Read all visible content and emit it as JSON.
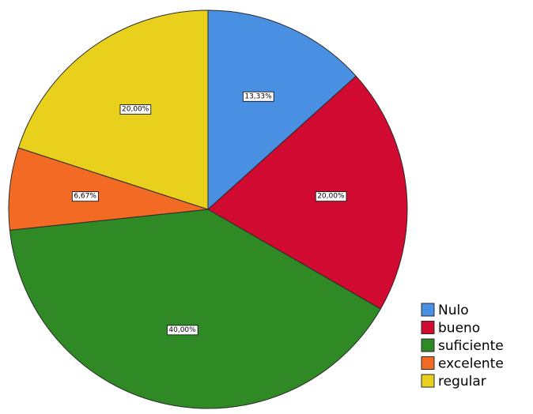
{
  "chart_data": {
    "type": "pie",
    "title": "",
    "start_angle_deg": 0,
    "direction": "clockwise",
    "legend_position": "bottom-right",
    "slices": [
      {
        "label": "Nulo",
        "value": 13.33,
        "display": "13,33%",
        "color": "#4a90e2"
      },
      {
        "label": "bueno",
        "value": 20.0,
        "display": "20,00%",
        "color": "#d10a31"
      },
      {
        "label": "suficiente",
        "value": 40.0,
        "display": "40,00%",
        "color": "#2f8a26"
      },
      {
        "label": "excelente",
        "value": 6.67,
        "display": "6,67%",
        "color": "#f26a23"
      },
      {
        "label": "regular",
        "value": 20.0,
        "display": "20,00%",
        "color": "#e8d01c"
      }
    ]
  }
}
